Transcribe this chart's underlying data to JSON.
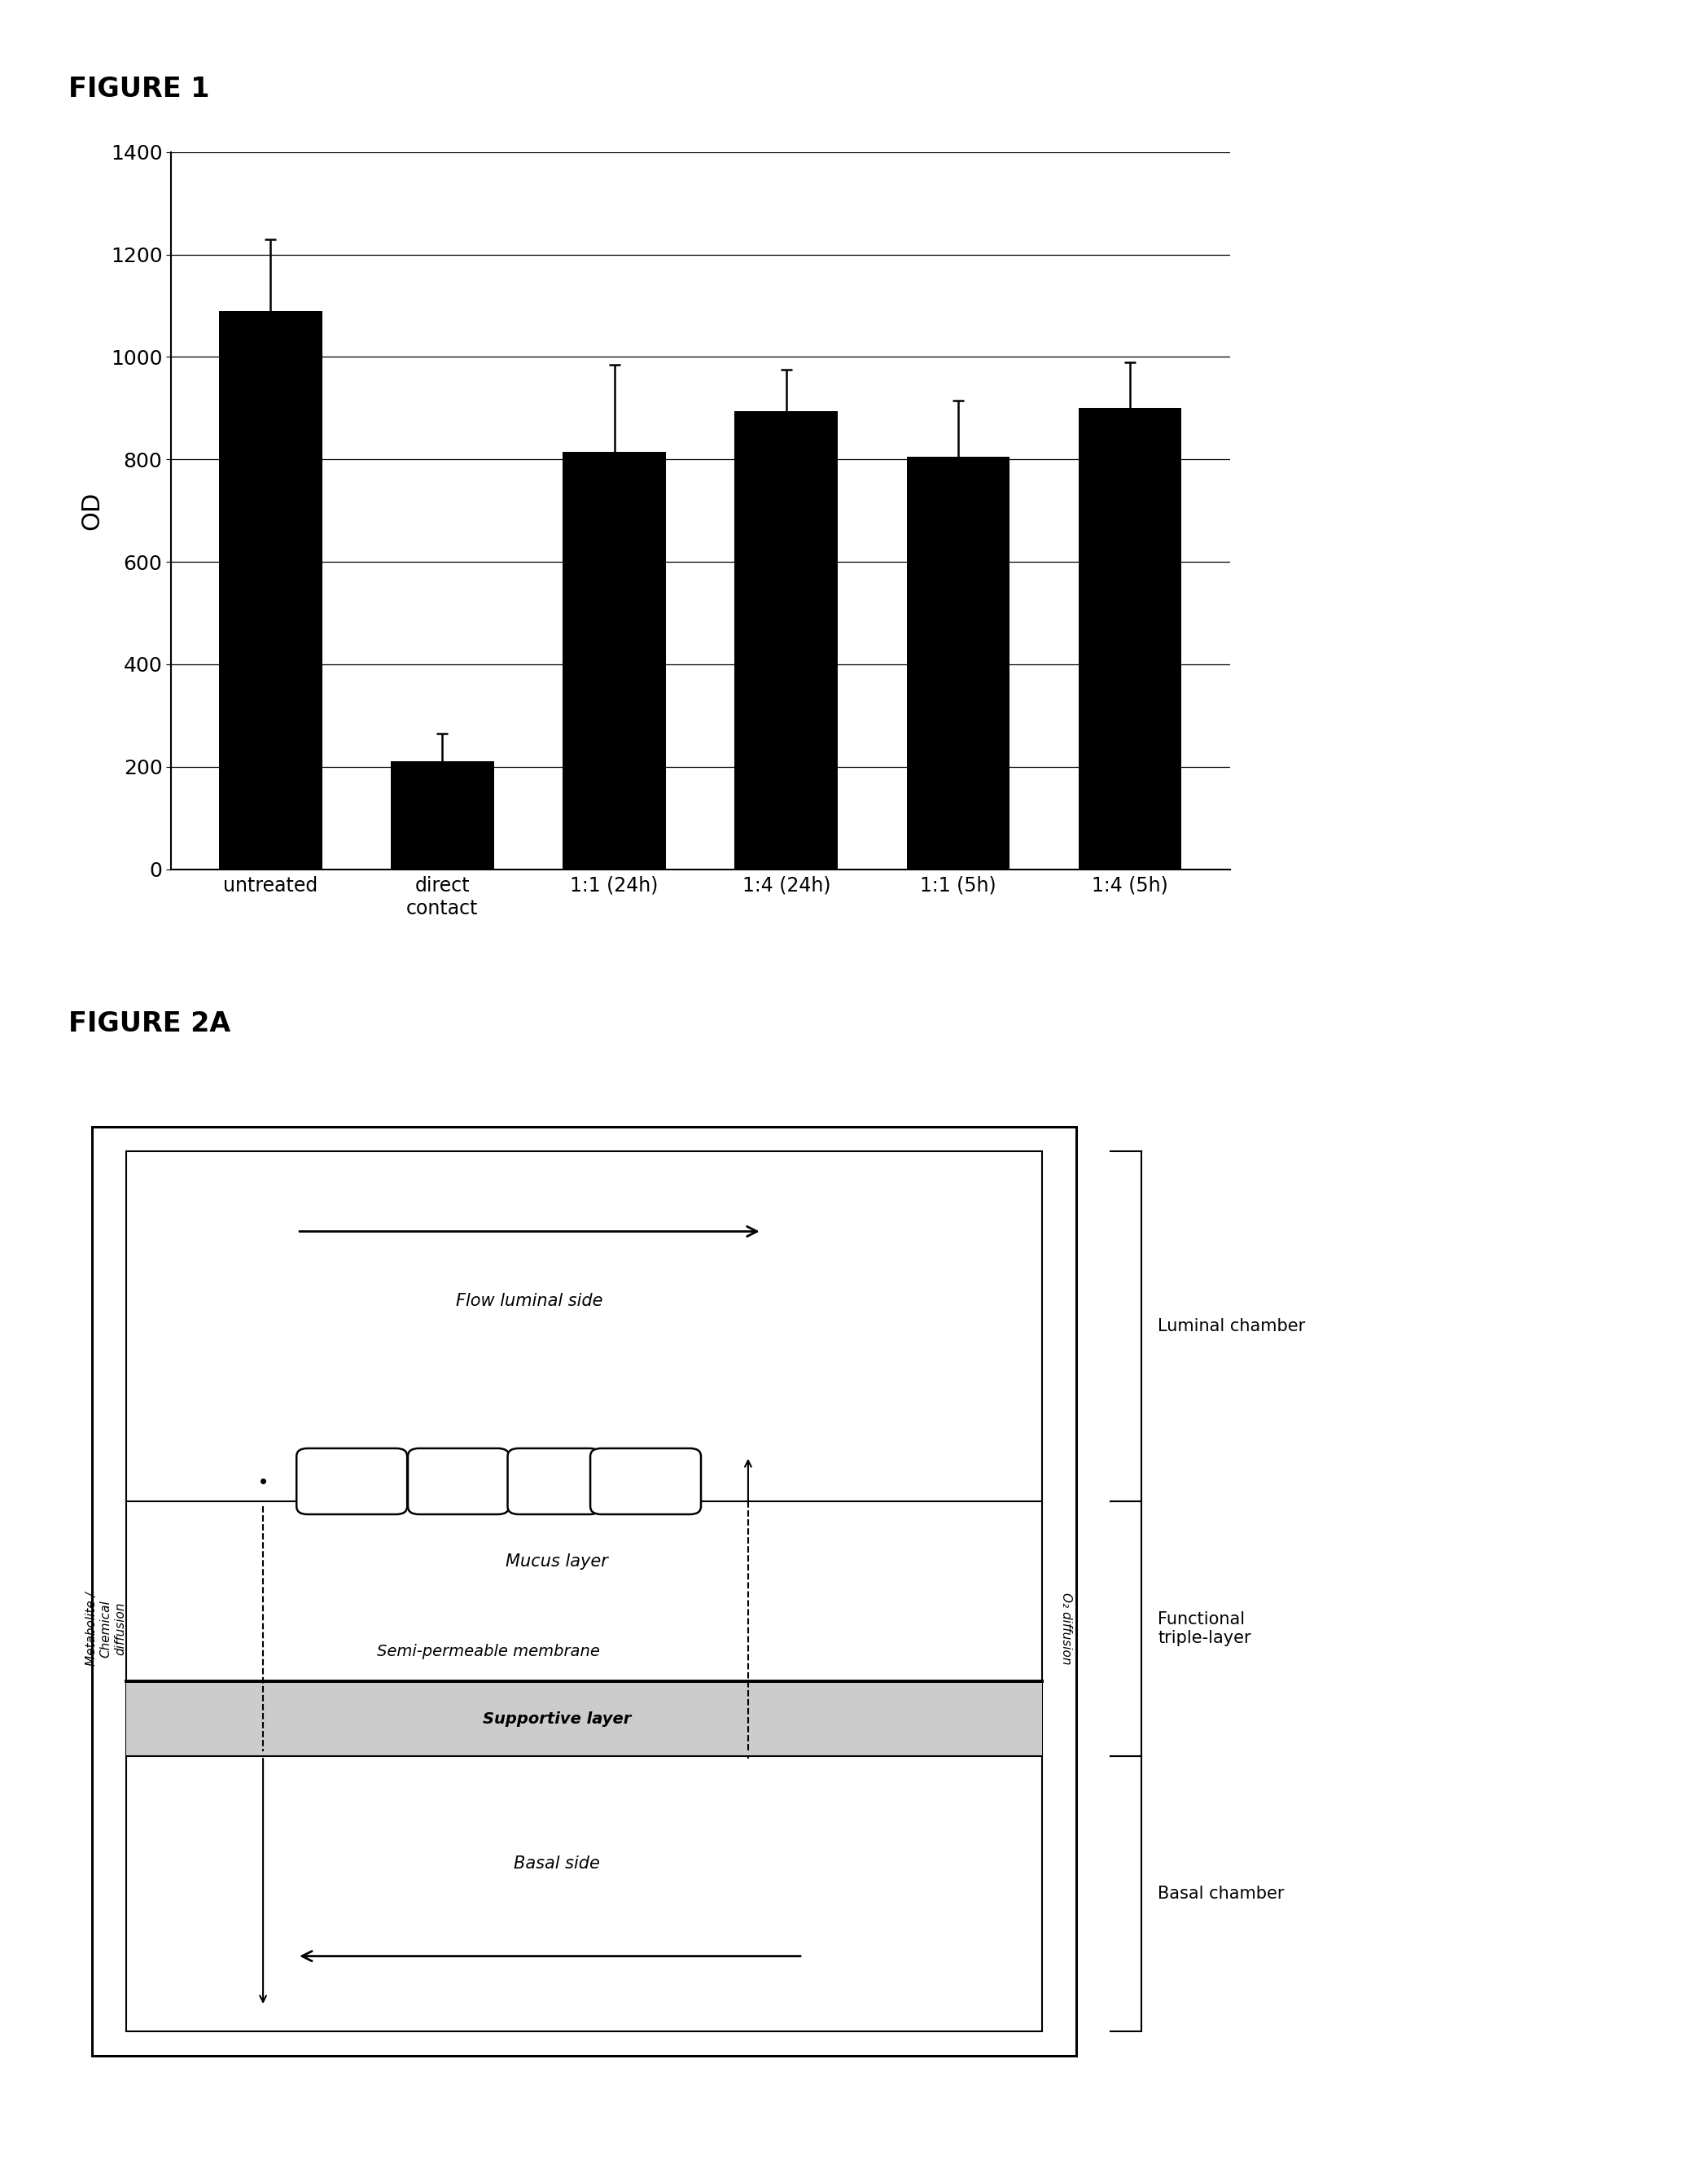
{
  "figure1_title": "FIGURE 1",
  "figure2a_title": "FIGURE 2A",
  "bar_categories": [
    "untreated",
    "direct\ncontact",
    "1:1 (24h)",
    "1:4 (24h)",
    "1:1 (5h)",
    "1:4 (5h)"
  ],
  "bar_values": [
    1090,
    210,
    815,
    895,
    805,
    900
  ],
  "bar_errors": [
    140,
    55,
    170,
    80,
    110,
    90
  ],
  "bar_color": "#000000",
  "ylabel": "OD",
  "ylim": [
    0,
    1400
  ],
  "yticks": [
    0,
    200,
    400,
    600,
    800,
    1000,
    1200,
    1400
  ],
  "bg_color": "#ffffff",
  "diagram_labels": {
    "flow_luminal": "Flow luminal side",
    "mucus_layer": "Mucus layer",
    "semi_permeable": "Semi-permeable membrane",
    "supportive_layer": "Supportive layer",
    "basal_side": "Basal side",
    "metabolite": "Metabolite /\nChemical\ndiffusion",
    "o2_diffusion": "O₂ diffusion",
    "luminal_chamber": "Luminal chamber",
    "functional_triple": "Functional\ntriple-layer",
    "basal_chamber": "Basal chamber"
  }
}
